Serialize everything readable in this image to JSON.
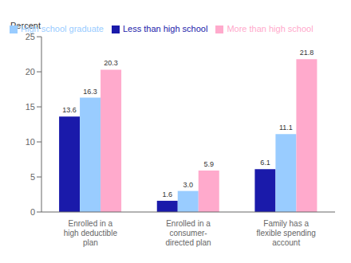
{
  "chart_data": {
    "type": "bar",
    "y_label": "Percent",
    "categories": [
      "Enrolled in a\nhigh deductible\nplan",
      "Enrolled in a\nconsumer-\ndirected plan",
      "Family has a\nflexible spending\naccount"
    ],
    "series": [
      {
        "name": "Less than high school",
        "color": "#1a1aaa",
        "values": [
          13.6,
          1.6,
          6.1
        ]
      },
      {
        "name": "High school graduate",
        "color": "#99ccff",
        "values": [
          16.3,
          3.0,
          11.1
        ],
        "value_labels": [
          "16.3",
          "3.0",
          "11.1"
        ]
      },
      {
        "name": "More than high school",
        "color": "#ffaacc",
        "values": [
          20.3,
          5.9,
          21.8
        ]
      }
    ],
    "ylim": [
      0,
      25
    ],
    "yticks": [
      0,
      5,
      10,
      15,
      20,
      25
    ],
    "grid": false,
    "legend": "top",
    "data_labels": true
  }
}
